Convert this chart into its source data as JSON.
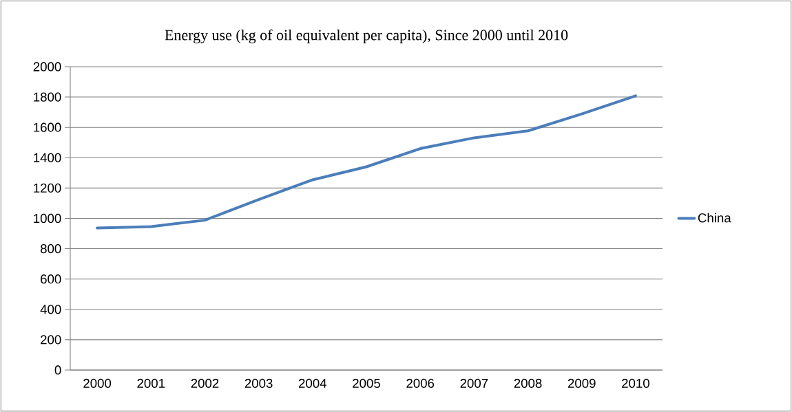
{
  "chart_data": {
    "type": "line",
    "title": "Energy use (kg of oil equivalent per capita), Since 2000 until 2010",
    "categories": [
      "2000",
      "2001",
      "2002",
      "2003",
      "2004",
      "2005",
      "2006",
      "2007",
      "2008",
      "2009",
      "2010"
    ],
    "series": [
      {
        "name": "China",
        "color": "#4a7ebb",
        "values": [
          937,
          946,
          988,
          1124,
          1254,
          1340,
          1460,
          1531,
          1577,
          1689,
          1808
        ]
      }
    ],
    "ylim": [
      0,
      2000
    ],
    "yticks": [
      0,
      200,
      400,
      600,
      800,
      1000,
      1200,
      1400,
      1600,
      1800,
      2000
    ],
    "grid": "y",
    "legend": "right",
    "marker": "none",
    "line_style": "solid"
  }
}
